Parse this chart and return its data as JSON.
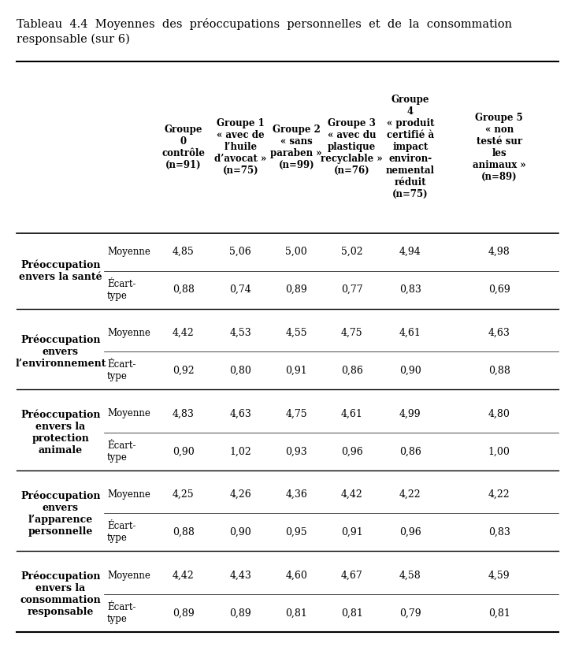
{
  "title_line1": "Tableau  4.4  Moyennes  des  préoccupations  personnelles  et  de  la  consommation",
  "title_line2": "responsable (sur 6)",
  "col_headers": [
    "Groupe\n0\ncontrôle\n(n=91)",
    "Groupe 1\n« avec de\nl’huile\nd’avocat »\n(n=75)",
    "Groupe 2\n« sans\nparaben »\n(n=99)",
    "Groupe 3\n« avec du\nplastique\nrecyclable »\n(n=76)",
    "Groupe\n4\n« produit\ncertifié à\nimpact\nenviron-\nnemental\nréduit\n(n=75)",
    "Groupe 5\n« non\ntesté sur\nles\nanimaux »\n(n=89)"
  ],
  "row_groups": [
    {
      "label": "Préoccupation\nenvers la santé",
      "rows": [
        {
          "sub": "Moyenne",
          "values": [
            "4,85",
            "5,06",
            "5,00",
            "5,02",
            "4,94",
            "4,98"
          ]
        },
        {
          "sub": "Écart-\ntype",
          "values": [
            "0,88",
            "0,74",
            "0,89",
            "0,77",
            "0,83",
            "0,69"
          ]
        }
      ]
    },
    {
      "label": "Préoccupation\nenvers\nl’environnement",
      "rows": [
        {
          "sub": "Moyenne",
          "values": [
            "4,42",
            "4,53",
            "4,55",
            "4,75",
            "4,61",
            "4,63"
          ]
        },
        {
          "sub": "Écart-\ntype",
          "values": [
            "0,92",
            "0,80",
            "0,91",
            "0,86",
            "0,90",
            "0,88"
          ]
        }
      ]
    },
    {
      "label": "Préoccupation\nenvers la\nprotection\nanimale",
      "rows": [
        {
          "sub": "Moyenne",
          "values": [
            "4,83",
            "4,63",
            "4,75",
            "4,61",
            "4,99",
            "4,80"
          ]
        },
        {
          "sub": "Écart-\ntype",
          "values": [
            "0,90",
            "1,02",
            "0,93",
            "0,96",
            "0,86",
            "1,00"
          ]
        }
      ]
    },
    {
      "label": "Préoccupation\nenvers\nl’apparence\npersonnelle",
      "rows": [
        {
          "sub": "Moyenne",
          "values": [
            "4,25",
            "4,26",
            "4,36",
            "4,42",
            "4,22",
            "4,22"
          ]
        },
        {
          "sub": "Écart-\ntype",
          "values": [
            "0,88",
            "0,90",
            "0,95",
            "0,91",
            "0,96",
            "0,83"
          ]
        }
      ]
    },
    {
      "label": "Préoccupation\nenvers la\nconsommation\nresponsable",
      "rows": [
        {
          "sub": "Moyenne",
          "values": [
            "4,42",
            "4,43",
            "4,60",
            "4,67",
            "4,58",
            "4,59"
          ]
        },
        {
          "sub": "Écart-\ntype",
          "values": [
            "0,89",
            "0,89",
            "0,81",
            "0,81",
            "0,79",
            "0,81"
          ]
        }
      ]
    }
  ],
  "bg_color": "#ffffff",
  "text_color": "#000000",
  "title_fontsize": 10.5,
  "header_fontsize": 8.5,
  "body_fontsize": 9.0,
  "label_fontsize": 9.0,
  "sublabel_fontsize": 8.5
}
